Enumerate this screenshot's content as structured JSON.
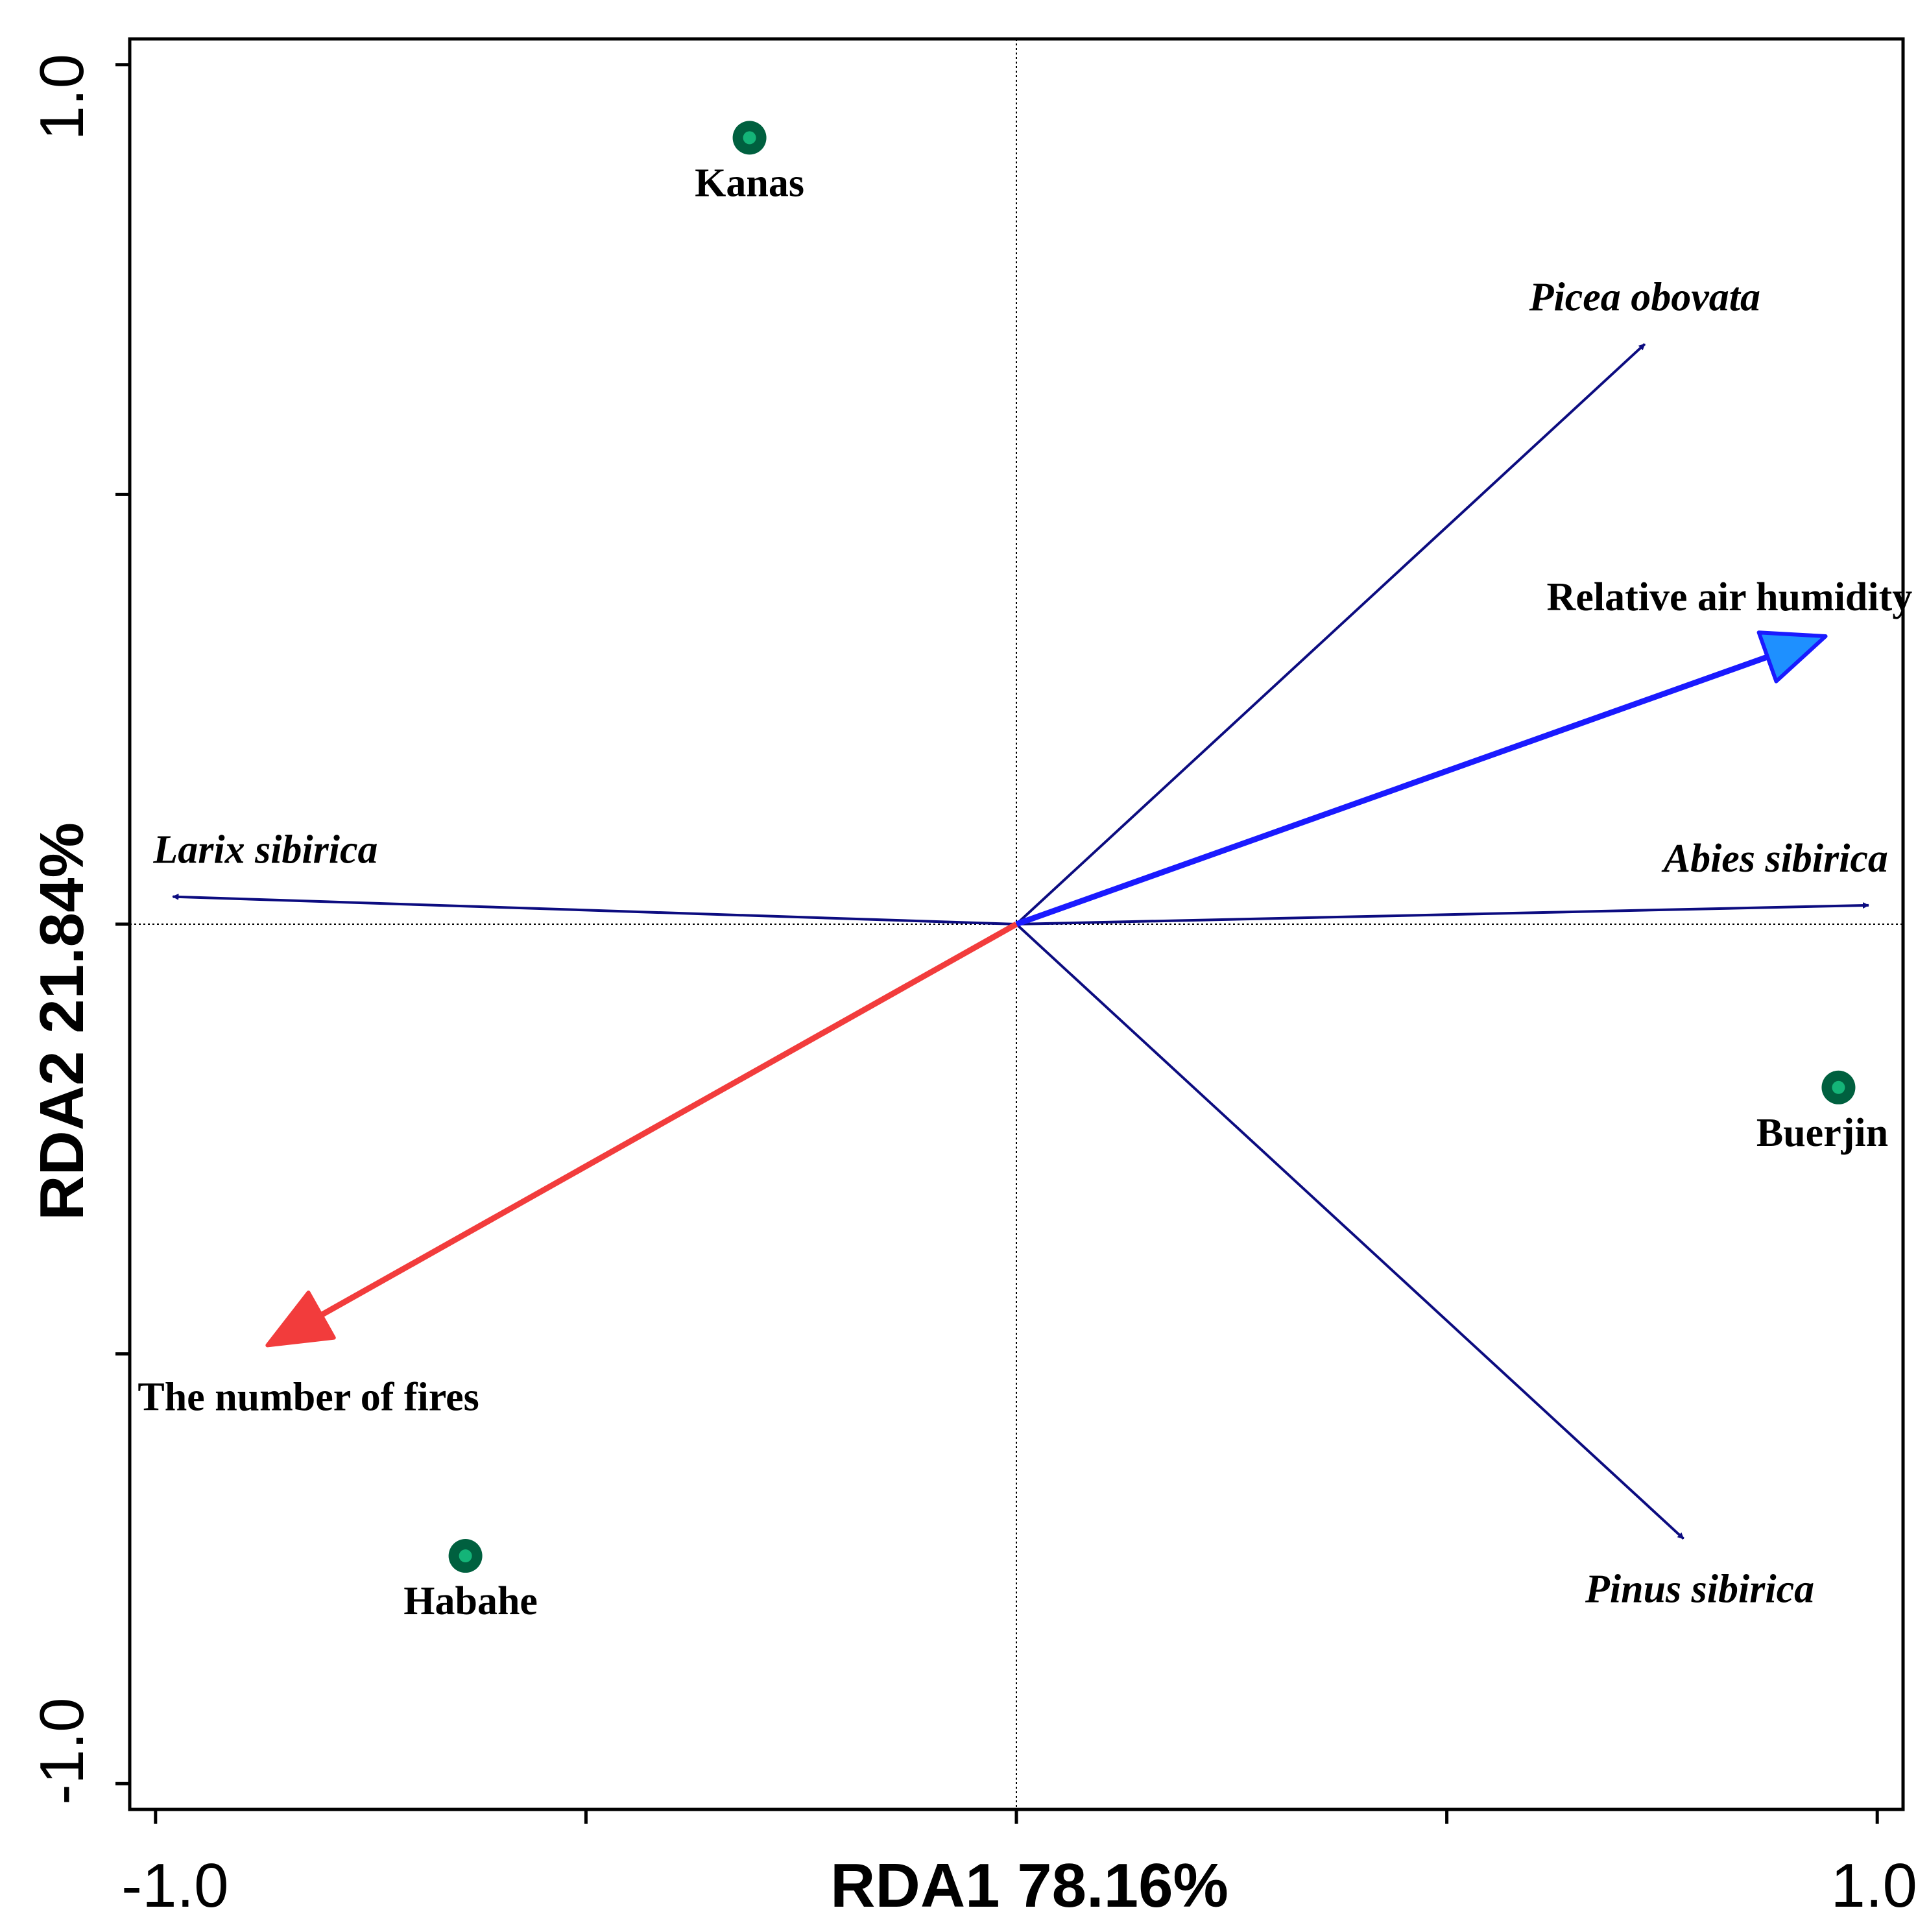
{
  "chart_data": {
    "type": "scatter",
    "subtype": "rda-biplot",
    "title": "",
    "xlabel": "RDA1 78.16%",
    "ylabel": "RDA2 21.84%",
    "xlim": [
      -1.03,
      1.03
    ],
    "ylim": [
      -1.03,
      1.03
    ],
    "x_tick_labels": [
      {
        "value": -1.0,
        "label": "-1.0"
      },
      {
        "value": 1.0,
        "label": "1.0"
      }
    ],
    "y_tick_labels": [
      {
        "value": 1.0,
        "label": "1.0"
      },
      {
        "value": -1.0,
        "label": "-1.0"
      }
    ],
    "x_ticks": [
      -1.0,
      -0.5,
      0.0,
      0.5,
      1.0
    ],
    "y_ticks": [
      -1.0,
      -0.5,
      0.0,
      0.5,
      1.0
    ],
    "reference_lines": {
      "x": 0.0,
      "y": 0.0
    },
    "sites": [
      {
        "name": "Kanas",
        "x": -0.31,
        "y": 0.915
      },
      {
        "name": "Buerjin",
        "x": 0.955,
        "y": -0.19
      },
      {
        "name": "Habahe",
        "x": -0.64,
        "y": -0.735
      }
    ],
    "species_arrows": [
      {
        "name": "Picea obovata",
        "x": 0.73,
        "y": 0.675
      },
      {
        "name": "Larix sibirica",
        "x": -0.98,
        "y": 0.032
      },
      {
        "name": "Abies sibirica",
        "x": 0.99,
        "y": 0.022
      },
      {
        "name": "Pinus sibirica",
        "x": 0.775,
        "y": -0.715
      }
    ],
    "environment_arrows": [
      {
        "name": "Relative air humidity",
        "x": 0.94,
        "y": 0.335,
        "color": "#1a1aff"
      },
      {
        "name": "The number of fires",
        "x": -0.87,
        "y": -0.49,
        "color": "#f23c3c"
      }
    ],
    "colors": {
      "species_arrow": "#0c0c80",
      "humidity_arrow": "#1a1aff",
      "humidity_head": "#1e90ff",
      "fires_arrow": "#f23c3c",
      "site_ring": "#00603f",
      "site_center": "#14b478"
    }
  }
}
